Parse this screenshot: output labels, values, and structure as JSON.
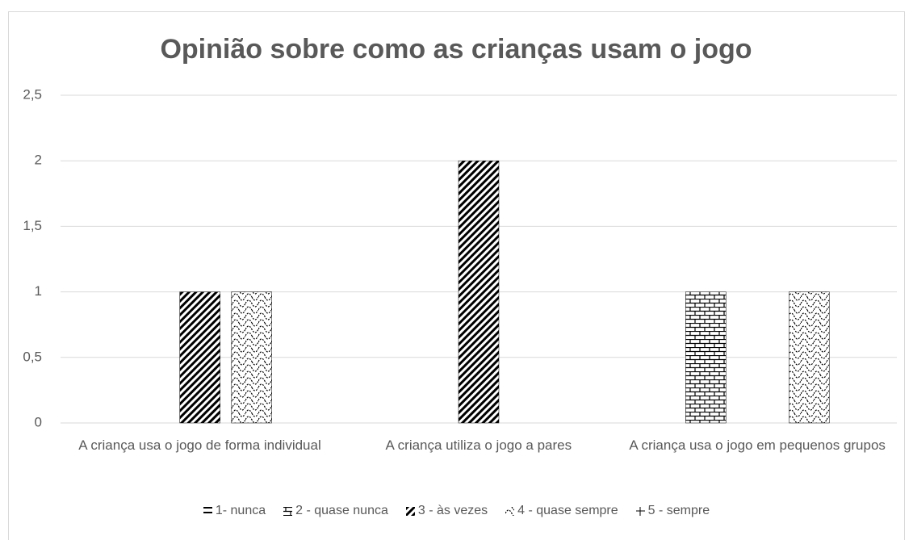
{
  "chart_data": {
    "type": "bar",
    "title": "Opinião sobre como as crianças usam o jogo",
    "categories": [
      "A criança usa o jogo de forma individual",
      "A criança utiliza o jogo a pares",
      "A criança usa o jogo em pequenos grupos"
    ],
    "series": [
      {
        "name": "1- nunca",
        "color": "#000000",
        "values": [
          0,
          0,
          0
        ]
      },
      {
        "name": "2 - quase nunca",
        "color": "#000000",
        "values": [
          0,
          0,
          1
        ]
      },
      {
        "name": "3 - às vezes",
        "color": "#000000",
        "values": [
          1,
          2,
          0
        ]
      },
      {
        "name": "4 - quase sempre",
        "color": "#000000",
        "values": [
          1,
          0,
          1
        ]
      },
      {
        "name": "5 - sempre",
        "color": "#000000",
        "values": [
          0,
          0,
          0
        ]
      }
    ],
    "ylim": [
      0,
      2.5
    ],
    "yticks": [
      0,
      {
        "value": 0.5,
        "label": "0,5"
      },
      1,
      {
        "value": 1.5,
        "label": "1,5"
      },
      2,
      {
        "value": 2.5,
        "label": "2,5"
      }
    ],
    "grid": true,
    "legend": "bottom"
  }
}
